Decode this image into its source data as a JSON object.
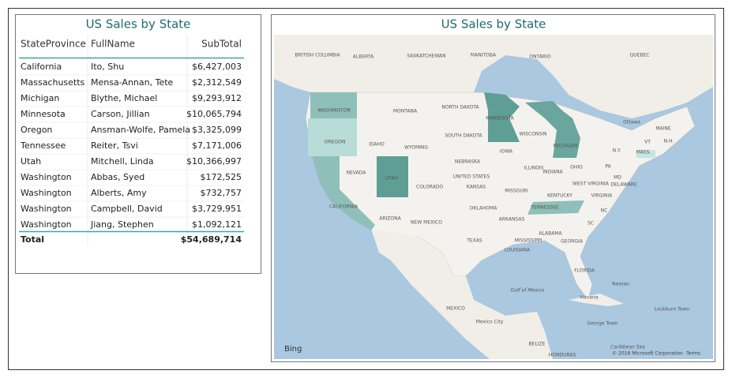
{
  "table": {
    "title": "US Sales by State",
    "headers": [
      "StateProvince",
      "FullName",
      "SubTotal"
    ],
    "rows": [
      [
        "California",
        "Ito, Shu",
        "$6,427,003"
      ],
      [
        "Massachusetts",
        "Mensa-Annan, Tete",
        "$2,312,549"
      ],
      [
        "Michigan",
        "Blythe, Michael",
        "$9,293,912"
      ],
      [
        "Minnesota",
        "Carson, Jillian",
        "$10,065,794"
      ],
      [
        "Oregon",
        "Ansman-Wolfe, Pamela",
        "$3,325,099"
      ],
      [
        "Tennessee",
        "Reiter, Tsvi",
        "$7,171,006"
      ],
      [
        "Utah",
        "Mitchell, Linda",
        "$10,366,997"
      ],
      [
        "Washington",
        "Abbas, Syed",
        "$172,525"
      ],
      [
        "Washington",
        "Alberts, Amy",
        "$732,757"
      ],
      [
        "Washington",
        "Campbell, David",
        "$3,729,951"
      ],
      [
        "Washington",
        "Jiang, Stephen",
        "$1,092,121"
      ]
    ],
    "total": {
      "label": "Total",
      "subtotal": "$54,689,714"
    }
  },
  "map": {
    "title": "US Sales by State",
    "labels": [
      "BRITISH COLUMBIA",
      "ALBERTA",
      "SASKATCHEWAN",
      "MANITOBA",
      "ONTARIO",
      "QUEBEC",
      "WASHINGTON",
      "OREGON",
      "IDAHO",
      "MONTANA",
      "WYOMING",
      "NORTH DAKOTA",
      "SOUTH DAKOTA",
      "NEBRASKA",
      "NEVADA",
      "UTAH",
      "COLORADO",
      "KANSAS",
      "CALIFORNIA",
      "ARIZONA",
      "NEW MEXICO",
      "OKLAHOMA",
      "TEXAS",
      "MINNESOTA",
      "WISCONSIN",
      "IOWA",
      "ILLINOIS",
      "MISSOURI",
      "ARKANSAS",
      "MISSISSIPPI",
      "LOUISIANA",
      "ALABAMA",
      "GEORGIA",
      "TENNESSEE",
      "KENTUCKY",
      "MICHIGAN",
      "INDIANA",
      "OHIO",
      "WEST VIRGINIA",
      "VIRGINIA",
      "PA",
      "NC",
      "SC",
      "FLORIDA",
      "N.Y.",
      "MAINE",
      "N.H.",
      "VT",
      "MASS.",
      "DELAWARE",
      "MD",
      "Ottawa",
      "UNITED STATES",
      "MEXICO",
      "Mexico City",
      "Gulf of Mexico",
      "Havana",
      "Nassau",
      "Lockburn Town",
      "George Town",
      "BELIZE",
      "HONDURAS",
      "Caribbean Sea"
    ],
    "provider": "Bing",
    "copyright": "© 2016 Microsoft Corporation",
    "terms": "Terms"
  }
}
